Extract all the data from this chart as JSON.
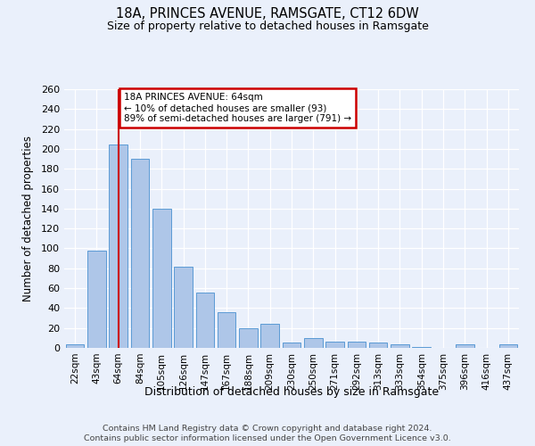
{
  "title": "18A, PRINCES AVENUE, RAMSGATE, CT12 6DW",
  "subtitle": "Size of property relative to detached houses in Ramsgate",
  "xlabel": "Distribution of detached houses by size in Ramsgate",
  "ylabel": "Number of detached properties",
  "footer_line1": "Contains HM Land Registry data © Crown copyright and database right 2024.",
  "footer_line2": "Contains public sector information licensed under the Open Government Licence v3.0.",
  "categories": [
    "22sqm",
    "43sqm",
    "64sqm",
    "84sqm",
    "105sqm",
    "126sqm",
    "147sqm",
    "167sqm",
    "188sqm",
    "209sqm",
    "230sqm",
    "250sqm",
    "271sqm",
    "292sqm",
    "313sqm",
    "333sqm",
    "354sqm",
    "375sqm",
    "396sqm",
    "416sqm",
    "437sqm"
  ],
  "values": [
    4,
    98,
    204,
    190,
    140,
    82,
    56,
    36,
    20,
    24,
    5,
    10,
    6,
    6,
    5,
    4,
    1,
    0,
    4,
    0,
    4
  ],
  "bar_color": "#aec6e8",
  "bar_edge_color": "#5b9bd5",
  "property_line_x": 2,
  "annotation_title": "18A PRINCES AVENUE: 64sqm",
  "annotation_line1": "← 10% of detached houses are smaller (93)",
  "annotation_line2": "89% of semi-detached houses are larger (791) →",
  "annotation_box_color": "#ffffff",
  "annotation_box_edge": "#cc0000",
  "vline_color": "#cc0000",
  "bg_color": "#eaf0fb",
  "grid_color": "#ffffff",
  "ylim": [
    0,
    260
  ],
  "yticks": [
    0,
    20,
    40,
    60,
    80,
    100,
    120,
    140,
    160,
    180,
    200,
    220,
    240,
    260
  ]
}
